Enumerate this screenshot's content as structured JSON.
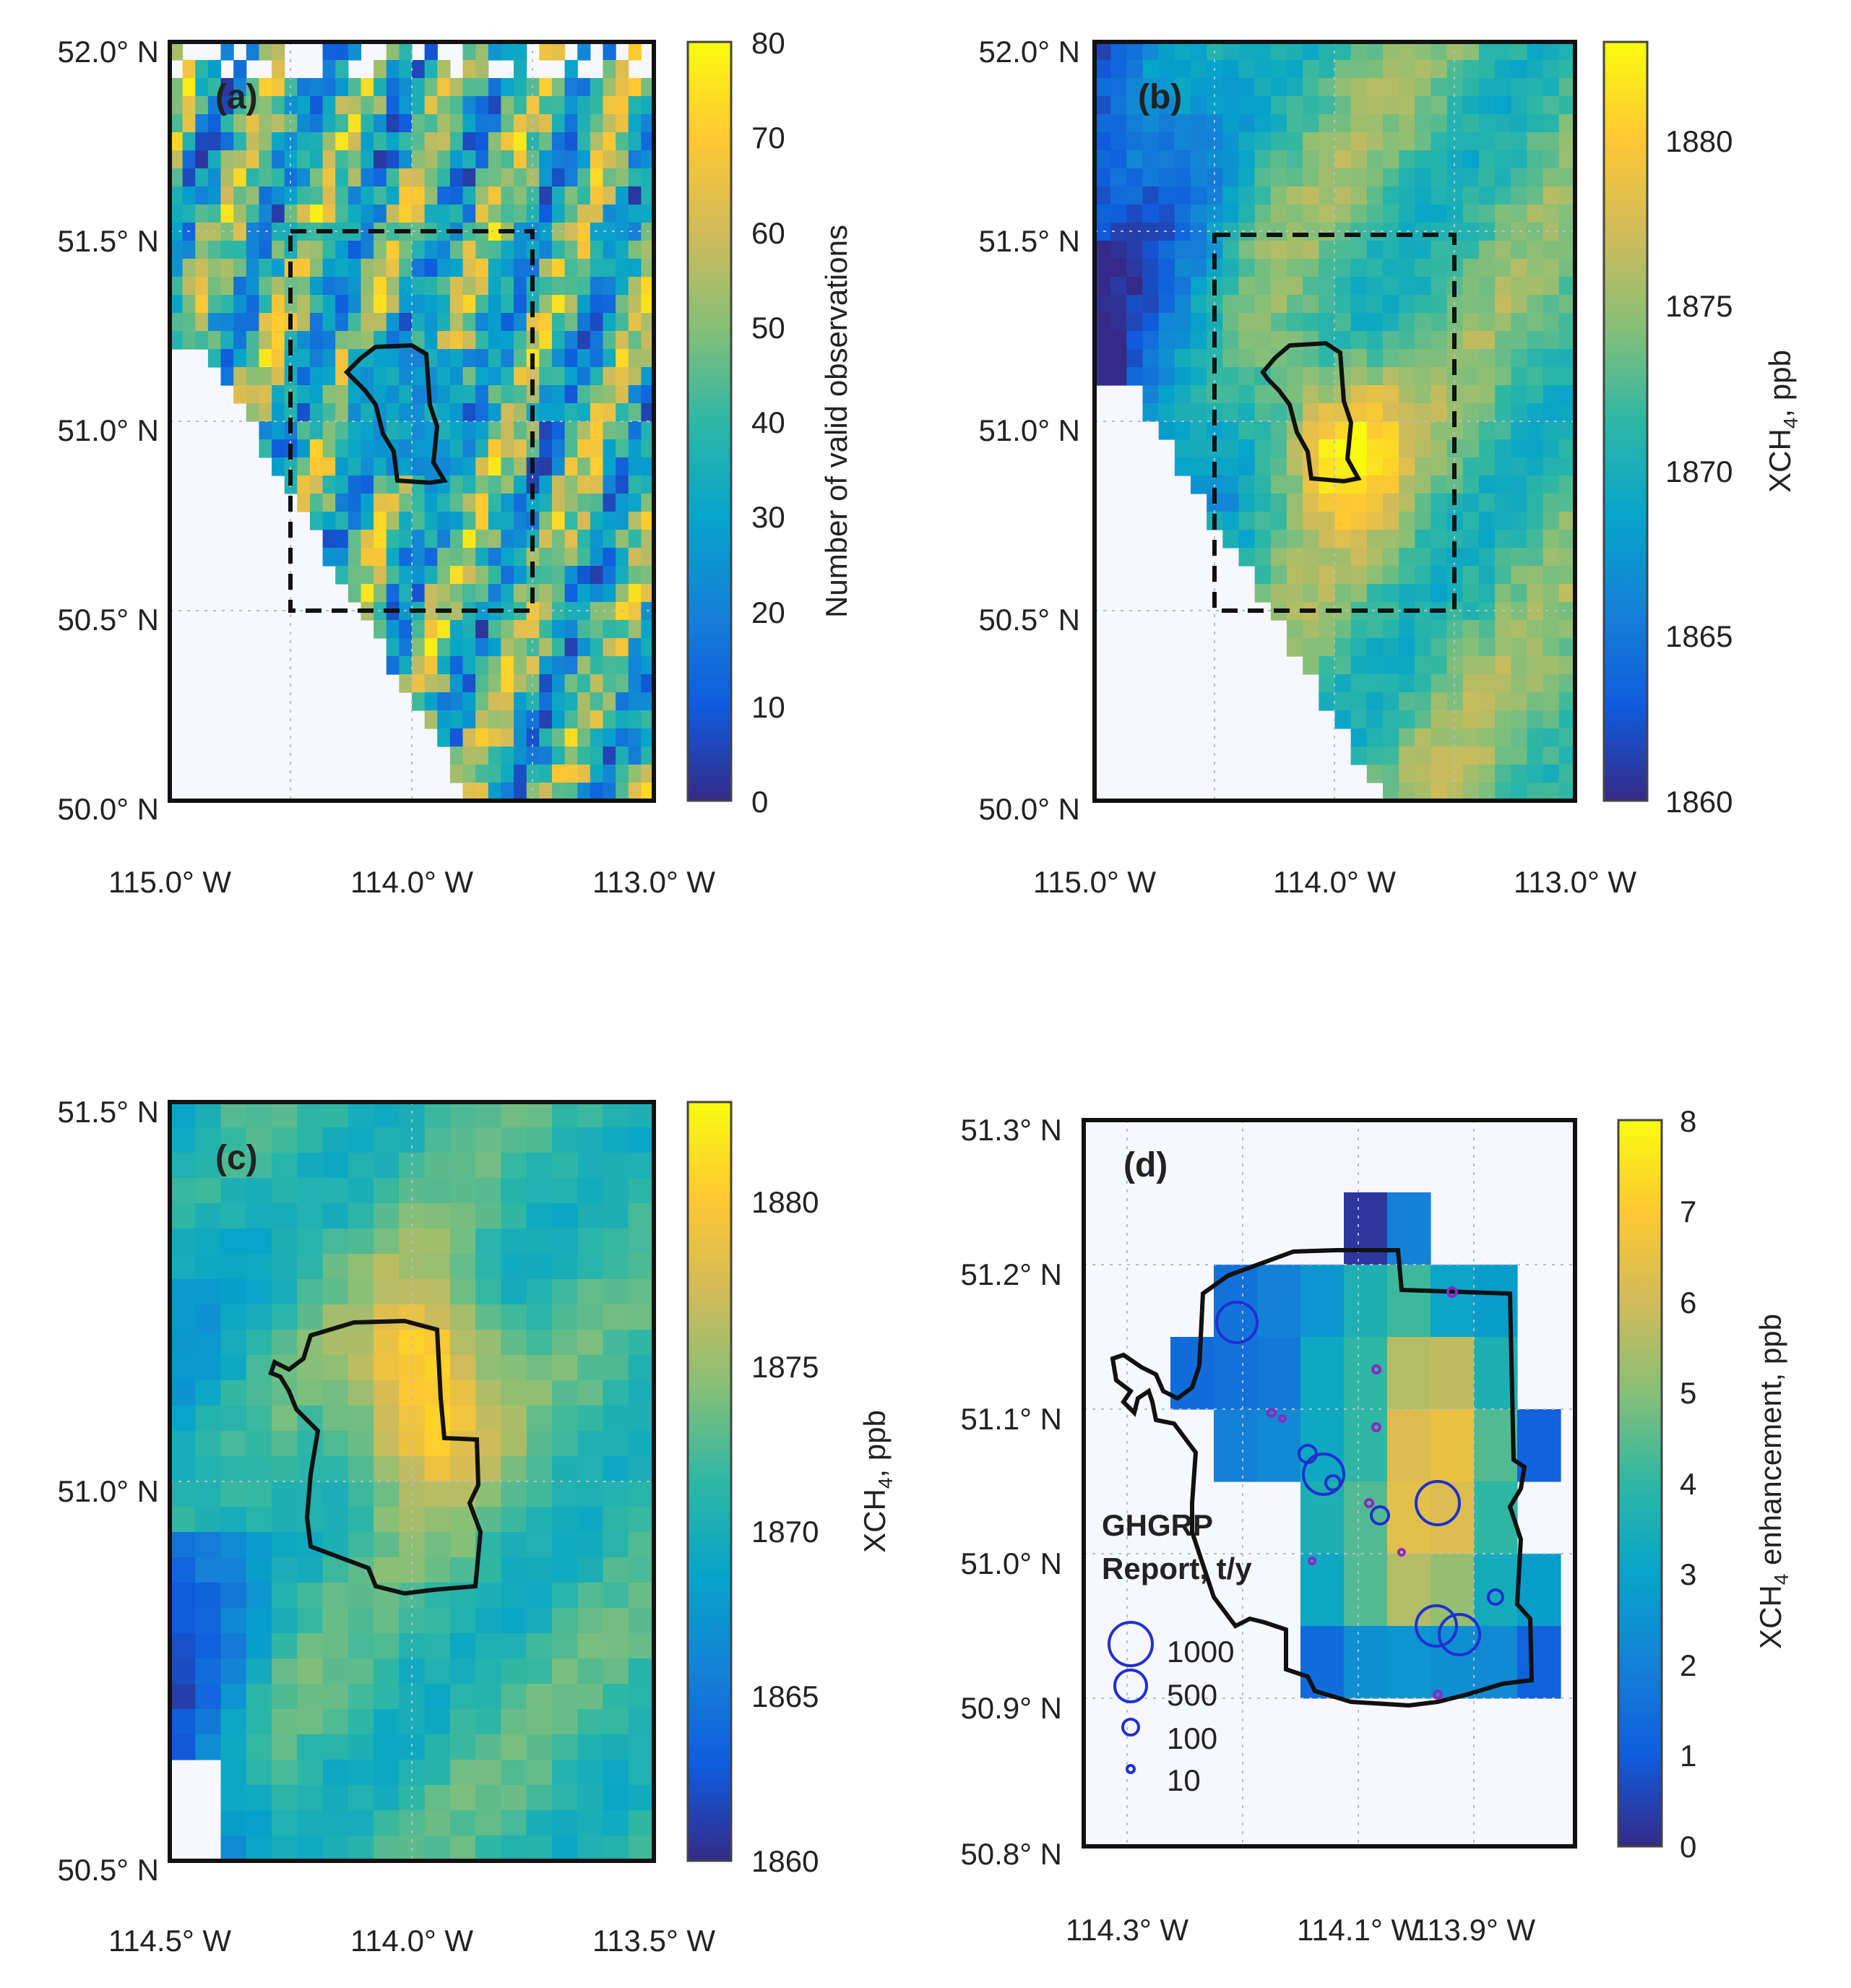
{
  "panels": [
    {
      "id": "a",
      "label": "(a)",
      "lat_ticks": [
        "52.0° N",
        "51.5° N",
        "51.0° N",
        "50.5° N",
        "50.0° N"
      ],
      "lon_ticks": [
        "115.0° W",
        "114.0° W",
        "113.0° W"
      ],
      "colorbar": {
        "ticks": [
          "80",
          "70",
          "60",
          "50",
          "40",
          "30",
          "20",
          "10",
          "0"
        ],
        "label": "Number of valid observations",
        "min": 0,
        "max": 80
      },
      "has_dashed_box": true
    },
    {
      "id": "b",
      "label": "(b)",
      "lat_ticks": [
        "52.0° N",
        "51.5° N",
        "51.0° N",
        "50.5° N",
        "50.0° N"
      ],
      "lon_ticks": [
        "115.0° W",
        "114.0° W",
        "113.0° W"
      ],
      "colorbar": {
        "ticks": [
          "1880",
          "1875",
          "1870",
          "1865",
          "1860"
        ],
        "label": "XCH4, ppb",
        "min": 1860,
        "max": 1883
      },
      "has_dashed_box": true
    },
    {
      "id": "c",
      "label": "(c)",
      "lat_ticks": [
        "51.5° N",
        "51.0° N",
        "50.5° N"
      ],
      "lon_ticks": [
        "114.5° W",
        "114.0° W",
        "113.5° W"
      ],
      "colorbar": {
        "ticks": [
          "1880",
          "1875",
          "1870",
          "1865",
          "1860"
        ],
        "label": "XCH4, ppb",
        "min": 1860,
        "max": 1883
      },
      "has_dashed_box": false
    },
    {
      "id": "d",
      "label": "(d)",
      "lat_ticks": [
        "51.3° N",
        "51.2° N",
        "51.1° N",
        "51.0° N",
        "50.9° N",
        "50.8° N"
      ],
      "lon_ticks": [
        "114.3° W",
        "114.1° W",
        "113.9° W"
      ],
      "colorbar": {
        "ticks": [
          "8",
          "7",
          "6",
          "5",
          "4",
          "3",
          "2",
          "1",
          "0"
        ],
        "label": "XCH4 enhancement, ppb",
        "min": 0,
        "max": 8
      },
      "legend": {
        "title_line1": "GHGRP",
        "title_line2": "Report, t/y",
        "entries": [
          "1000",
          "500",
          "100",
          "10"
        ]
      },
      "has_dashed_box": false
    }
  ]
}
